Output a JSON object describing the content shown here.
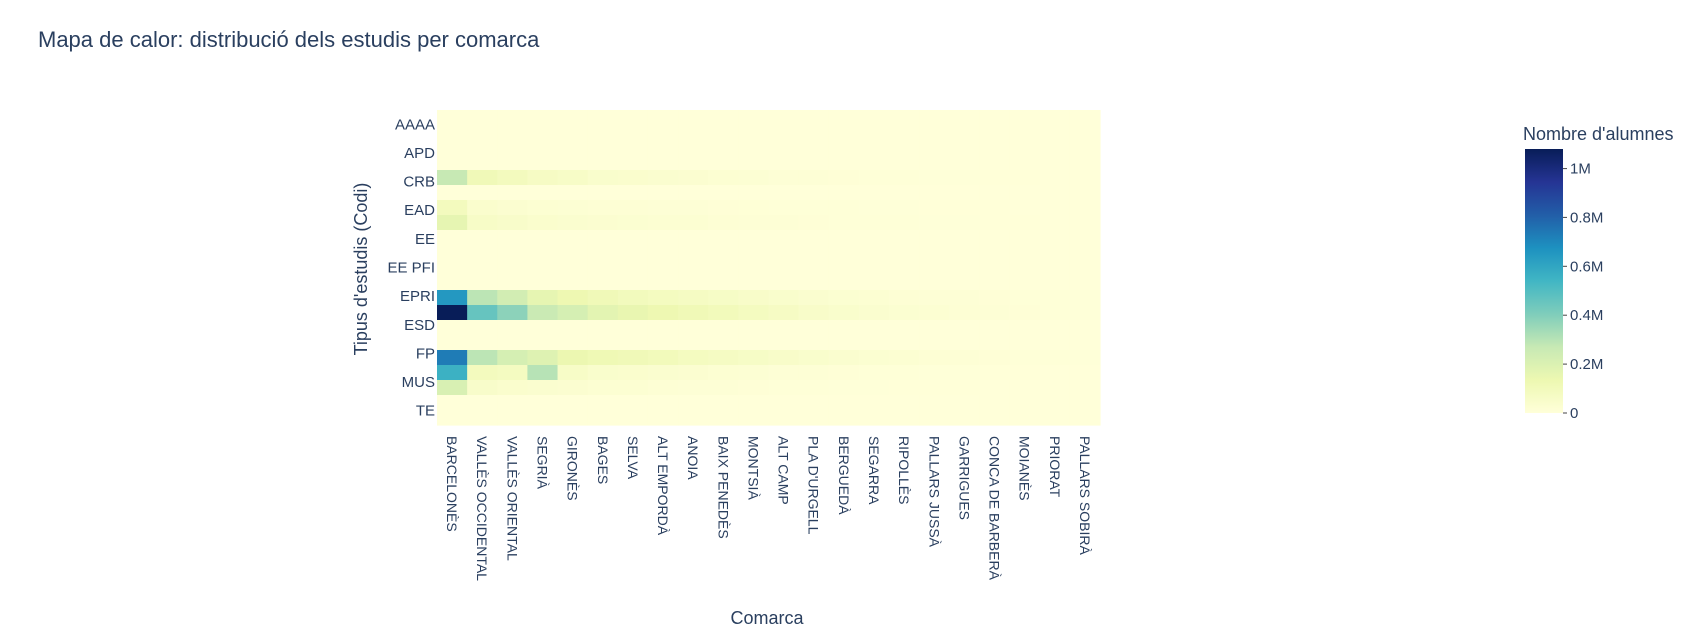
{
  "chart_data": {
    "type": "heatmap",
    "title": "Mapa de calor: distribució dels estudis per comarca",
    "xlabel": "Comarca",
    "ylabel": "Tipus d'estudis (Codi)",
    "x": [
      "BARCELONÈS",
      "VALLÈS OCCIDENTAL",
      "VALLÈS ORIENTAL",
      "SEGRIÀ",
      "GIRONÈS",
      "BAGES",
      "SELVA",
      "ALT EMPORDÀ",
      "ANOIA",
      "BAIX PENEDÈS",
      "MONTSIÀ",
      "ALT CAMP",
      "PLA D'URGELL",
      "BERGUEDÀ",
      "SEGARRA",
      "RIPOLLÈS",
      "PALLARS JUSSÀ",
      "GARRIGUES",
      "CONCA DE BARBERÀ",
      "MOIANÈS",
      "PRIORAT",
      "PALLARS SOBIRÀ"
    ],
    "y_ticks": [
      "AAAA",
      "APD",
      "CRB",
      "EAD",
      "EE",
      "EE PFI",
      "EPRI",
      "ESD",
      "FP",
      "MUS",
      "TE"
    ],
    "row_count": 21,
    "z_cols": 22,
    "rows": [
      [
        0,
        0,
        0,
        0,
        0,
        0,
        0,
        0,
        0,
        0,
        0,
        0,
        0,
        0,
        0,
        0,
        0,
        0,
        0,
        0,
        0,
        0
      ],
      [
        0,
        0,
        0,
        0,
        0,
        0,
        0,
        0,
        0,
        0,
        0,
        0,
        0,
        0,
        0,
        0,
        0,
        0,
        0,
        0,
        0,
        0
      ],
      [
        0,
        0,
        0,
        0,
        0,
        0,
        0,
        0,
        0,
        0,
        0,
        0,
        0,
        0,
        0,
        0,
        0,
        0,
        0,
        0,
        0,
        0
      ],
      [
        0,
        0,
        0,
        0,
        0,
        0,
        0,
        0,
        0,
        0,
        0,
        0,
        0,
        0,
        0,
        0,
        0,
        0,
        0,
        0,
        0,
        0
      ],
      [
        270000,
        110000,
        90000,
        70000,
        60000,
        45000,
        40000,
        35000,
        30000,
        25000,
        20000,
        15000,
        12000,
        10000,
        8000,
        6000,
        5000,
        4000,
        3000,
        2000,
        1500,
        1000
      ],
      [
        0,
        0,
        0,
        0,
        0,
        0,
        0,
        0,
        0,
        0,
        0,
        0,
        0,
        0,
        0,
        0,
        0,
        0,
        0,
        0,
        0,
        0
      ],
      [
        90000,
        40000,
        30000,
        25000,
        20000,
        18000,
        16000,
        14000,
        12000,
        10000,
        9000,
        8000,
        7000,
        6000,
        5000,
        4000,
        3000,
        2500,
        2000,
        1500,
        1000,
        800
      ],
      [
        160000,
        60000,
        50000,
        40000,
        35000,
        30000,
        28000,
        25000,
        22000,
        18000,
        15000,
        12000,
        10000,
        8000,
        7000,
        6000,
        5000,
        4000,
        3000,
        2000,
        1500,
        1000
      ],
      [
        0,
        0,
        0,
        0,
        0,
        0,
        0,
        0,
        0,
        0,
        0,
        0,
        0,
        0,
        0,
        0,
        0,
        0,
        0,
        0,
        0,
        0
      ],
      [
        0,
        0,
        0,
        0,
        0,
        0,
        0,
        0,
        0,
        0,
        0,
        0,
        0,
        0,
        0,
        0,
        0,
        0,
        0,
        0,
        0,
        0
      ],
      [
        0,
        0,
        0,
        0,
        0,
        0,
        0,
        0,
        0,
        0,
        0,
        0,
        0,
        0,
        0,
        0,
        0,
        0,
        0,
        0,
        0,
        0
      ],
      [
        0,
        0,
        0,
        0,
        0,
        0,
        0,
        0,
        0,
        0,
        0,
        0,
        0,
        0,
        0,
        0,
        0,
        0,
        0,
        0,
        0,
        0
      ],
      [
        650000,
        290000,
        230000,
        160000,
        130000,
        110000,
        95000,
        85000,
        75000,
        65000,
        55000,
        45000,
        35000,
        28000,
        22000,
        18000,
        15000,
        12000,
        10000,
        8000,
        6000,
        4000
      ],
      [
        1080000,
        460000,
        380000,
        260000,
        220000,
        170000,
        150000,
        130000,
        115000,
        100000,
        85000,
        70000,
        55000,
        45000,
        35000,
        28000,
        22000,
        18000,
        14000,
        11000,
        8000,
        5000
      ],
      [
        0,
        0,
        0,
        0,
        0,
        0,
        0,
        0,
        0,
        0,
        0,
        0,
        0,
        0,
        0,
        0,
        0,
        0,
        0,
        0,
        0,
        0
      ],
      [
        0,
        0,
        0,
        0,
        0,
        0,
        0,
        0,
        0,
        0,
        0,
        0,
        0,
        0,
        0,
        0,
        0,
        0,
        0,
        0,
        0,
        0
      ],
      [
        730000,
        290000,
        220000,
        190000,
        140000,
        120000,
        110000,
        100000,
        85000,
        75000,
        65000,
        55000,
        45000,
        35000,
        28000,
        22000,
        18000,
        14000,
        11000,
        8000,
        6000,
        4000
      ],
      [
        560000,
        90000,
        80000,
        300000,
        60000,
        45000,
        40000,
        35000,
        30000,
        25000,
        20000,
        15000,
        12000,
        10000,
        8000,
        6000,
        5000,
        4000,
        3000,
        2000,
        1500,
        1000
      ],
      [
        210000,
        50000,
        40000,
        35000,
        30000,
        25000,
        22000,
        18000,
        15000,
        12000,
        10000,
        8000,
        6000,
        5000,
        4000,
        3000,
        2500,
        2000,
        1500,
        1000,
        800,
        500
      ],
      [
        0,
        0,
        0,
        0,
        0,
        0,
        0,
        0,
        0,
        0,
        0,
        0,
        0,
        0,
        0,
        0,
        0,
        0,
        0,
        0,
        0,
        0
      ],
      [
        0,
        0,
        0,
        0,
        0,
        0,
        0,
        0,
        0,
        0,
        0,
        0,
        0,
        0,
        0,
        0,
        0,
        0,
        0,
        0,
        0,
        0
      ]
    ],
    "zlim": [
      0,
      1080000
    ],
    "colorscale": "YlGnBu",
    "colorbar": {
      "title": "Nombre d'alumnes",
      "ticks": [
        {
          "value": 0,
          "label": "0"
        },
        {
          "value": 200000,
          "label": "0.2M"
        },
        {
          "value": 400000,
          "label": "0.4M"
        },
        {
          "value": 600000,
          "label": "0.6M"
        },
        {
          "value": 800000,
          "label": "0.8M"
        },
        {
          "value": 1000000,
          "label": "1M"
        }
      ]
    },
    "colors": {
      "scale": [
        "#ffffd9",
        "#edf8b1",
        "#c7e9b4",
        "#7fcdbb",
        "#41b6c4",
        "#1d91c0",
        "#225ea8",
        "#253494",
        "#081d58"
      ],
      "text": "#2a3f5f",
      "background": "#ffffff"
    }
  }
}
